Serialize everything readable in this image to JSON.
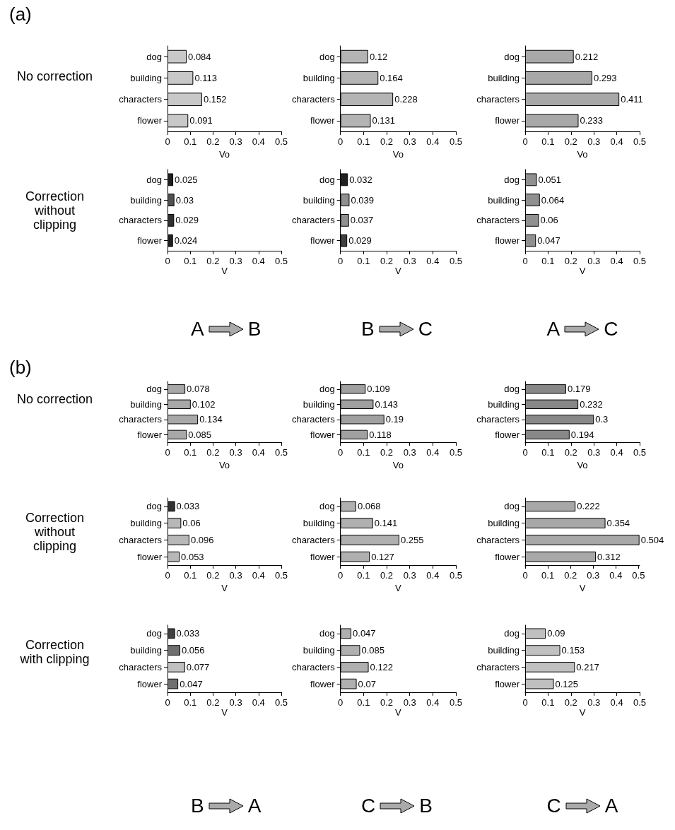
{
  "chart_data": [
    {
      "type": "bar",
      "orientation": "horizontal",
      "title": "(a)",
      "ylabel": "No correction",
      "xlabel": "Vo",
      "categories": [
        "dog",
        "building",
        "characters",
        "flower"
      ],
      "values": [
        0.084,
        0.113,
        0.152,
        0.091
      ],
      "colors": [
        "#c8c8c8",
        "#c8c8c8",
        "#c8c8c8",
        "#c8c8c8"
      ],
      "xlim": [
        0,
        0.5
      ],
      "xticks": [
        0,
        0.1,
        0.2,
        0.3,
        0.4,
        0.5
      ],
      "data_labels": true
    },
    {
      "type": "bar",
      "orientation": "horizontal",
      "xlabel": "Vo",
      "categories": [
        "dog",
        "building",
        "characters",
        "flower"
      ],
      "values": [
        0.12,
        0.164,
        0.228,
        0.131
      ],
      "colors": [
        "#b4b4b4",
        "#b4b4b4",
        "#b4b4b4",
        "#b4b4b4"
      ],
      "xlim": [
        0,
        0.5
      ],
      "xticks": [
        0,
        0.1,
        0.2,
        0.3,
        0.4,
        0.5
      ],
      "data_labels": true
    },
    {
      "type": "bar",
      "orientation": "horizontal",
      "xlabel": "Vo",
      "categories": [
        "dog",
        "building",
        "characters",
        "flower"
      ],
      "values": [
        0.212,
        0.293,
        0.411,
        0.233
      ],
      "colors": [
        "#a8a8a8",
        "#a8a8a8",
        "#a8a8a8",
        "#a8a8a8"
      ],
      "xlim": [
        0,
        0.5
      ],
      "xticks": [
        0,
        0.1,
        0.2,
        0.3,
        0.4,
        0.5
      ],
      "data_labels": true
    },
    {
      "type": "bar",
      "orientation": "horizontal",
      "ylabel": "Correction without clipping",
      "xlabel": "V",
      "categories": [
        "dog",
        "building",
        "characters",
        "flower"
      ],
      "values": [
        0.025,
        0.03,
        0.029,
        0.024
      ],
      "colors": [
        "#202020",
        "#505050",
        "#303030",
        "#202020"
      ],
      "xlim": [
        0,
        0.5
      ],
      "xticks": [
        0,
        0.1,
        0.2,
        0.3,
        0.4,
        0.5
      ],
      "data_labels": true,
      "annotations": [
        "A",
        "B"
      ]
    },
    {
      "type": "bar",
      "orientation": "horizontal",
      "xlabel": "V",
      "categories": [
        "dog",
        "building",
        "characters",
        "flower"
      ],
      "values": [
        0.032,
        0.039,
        0.037,
        0.029
      ],
      "colors": [
        "#202020",
        "#909090",
        "#909090",
        "#404040"
      ],
      "xlim": [
        0,
        0.5
      ],
      "xticks": [
        0,
        0.1,
        0.2,
        0.3,
        0.4,
        0.5
      ],
      "data_labels": true,
      "annotations": [
        "B",
        "C"
      ]
    },
    {
      "type": "bar",
      "orientation": "horizontal",
      "xlabel": "V",
      "categories": [
        "dog",
        "building",
        "characters",
        "flower"
      ],
      "values": [
        0.051,
        0.064,
        0.06,
        0.047
      ],
      "colors": [
        "#909090",
        "#909090",
        "#909090",
        "#909090"
      ],
      "xlim": [
        0,
        0.5
      ],
      "xticks": [
        0,
        0.1,
        0.2,
        0.3,
        0.4,
        0.5
      ],
      "data_labels": true,
      "annotations": [
        "A",
        "C"
      ]
    },
    {
      "type": "bar",
      "orientation": "horizontal",
      "title": "(b)",
      "ylabel": "No correction",
      "xlabel": "Vo",
      "categories": [
        "dog",
        "building",
        "characters",
        "flower"
      ],
      "values": [
        0.078,
        0.102,
        0.134,
        0.085
      ],
      "colors": [
        "#a8a8a8",
        "#a8a8a8",
        "#a8a8a8",
        "#a8a8a8"
      ],
      "xlim": [
        0,
        0.5
      ],
      "xticks": [
        0,
        0.1,
        0.2,
        0.3,
        0.4,
        0.5
      ],
      "data_labels": true
    },
    {
      "type": "bar",
      "orientation": "horizontal",
      "xlabel": "Vo",
      "categories": [
        "dog",
        "building",
        "characters",
        "flower"
      ],
      "values": [
        0.109,
        0.143,
        0.19,
        0.118
      ],
      "colors": [
        "#a0a0a0",
        "#a0a0a0",
        "#a0a0a0",
        "#a0a0a0"
      ],
      "xlim": [
        0,
        0.5
      ],
      "xticks": [
        0,
        0.1,
        0.2,
        0.3,
        0.4,
        0.5
      ],
      "data_labels": true
    },
    {
      "type": "bar",
      "orientation": "horizontal",
      "xlabel": "Vo",
      "categories": [
        "dog",
        "building",
        "characters",
        "flower"
      ],
      "values": [
        0.179,
        0.232,
        0.3,
        0.194
      ],
      "colors": [
        "#888888",
        "#888888",
        "#888888",
        "#888888"
      ],
      "xlim": [
        0,
        0.5
      ],
      "xticks": [
        0,
        0.1,
        0.2,
        0.3,
        0.4,
        0.5
      ],
      "data_labels": true
    },
    {
      "type": "bar",
      "orientation": "horizontal",
      "ylabel": "Correction without clipping",
      "xlabel": "V",
      "categories": [
        "dog",
        "building",
        "characters",
        "flower"
      ],
      "values": [
        0.033,
        0.06,
        0.096,
        0.053
      ],
      "colors": [
        "#303030",
        "#b8b8b8",
        "#b8b8b8",
        "#b8b8b8"
      ],
      "xlim": [
        0,
        0.5
      ],
      "xticks": [
        0,
        0.1,
        0.2,
        0.3,
        0.4,
        0.5
      ],
      "data_labels": true
    },
    {
      "type": "bar",
      "orientation": "horizontal",
      "xlabel": "V",
      "categories": [
        "dog",
        "building",
        "characters",
        "flower"
      ],
      "values": [
        0.068,
        0.141,
        0.255,
        0.127
      ],
      "colors": [
        "#b0b0b0",
        "#b0b0b0",
        "#b0b0b0",
        "#b0b0b0"
      ],
      "xlim": [
        0,
        0.5
      ],
      "xticks": [
        0,
        0.1,
        0.2,
        0.3,
        0.4,
        0.5
      ],
      "data_labels": true
    },
    {
      "type": "bar",
      "orientation": "horizontal",
      "xlabel": "V",
      "categories": [
        "dog",
        "building",
        "characters",
        "flower"
      ],
      "values": [
        0.222,
        0.354,
        0.504,
        0.312
      ],
      "colors": [
        "#a8a8a8",
        "#a8a8a8",
        "#a8a8a8",
        "#a8a8a8"
      ],
      "xlim": [
        0,
        0.505
      ],
      "xticks": [
        0,
        0.1,
        0.2,
        0.3,
        0.4,
        0.5
      ],
      "data_labels": true
    },
    {
      "type": "bar",
      "orientation": "horizontal",
      "ylabel": "Correction with clipping",
      "xlabel": "V",
      "categories": [
        "dog",
        "building",
        "characters",
        "flower"
      ],
      "values": [
        0.033,
        0.056,
        0.077,
        0.047
      ],
      "colors": [
        "#404040",
        "#707070",
        "#c0c0c0",
        "#707070"
      ],
      "xlim": [
        0,
        0.5
      ],
      "xticks": [
        0,
        0.1,
        0.2,
        0.3,
        0.4,
        0.5
      ],
      "data_labels": true,
      "annotations": [
        "B",
        "A"
      ]
    },
    {
      "type": "bar",
      "orientation": "horizontal",
      "xlabel": "V",
      "categories": [
        "dog",
        "building",
        "characters",
        "flower"
      ],
      "values": [
        0.047,
        0.085,
        0.122,
        0.07
      ],
      "colors": [
        "#b0b0b0",
        "#b0b0b0",
        "#b0b0b0",
        "#b0b0b0"
      ],
      "xlim": [
        0,
        0.5
      ],
      "xticks": [
        0,
        0.1,
        0.2,
        0.3,
        0.4,
        0.5
      ],
      "data_labels": true,
      "annotations": [
        "C",
        "B"
      ]
    },
    {
      "type": "bar",
      "orientation": "horizontal",
      "xlabel": "V",
      "categories": [
        "dog",
        "building",
        "characters",
        "flower"
      ],
      "values": [
        0.09,
        0.153,
        0.217,
        0.125
      ],
      "colors": [
        "#c0c0c0",
        "#c0c0c0",
        "#c0c0c0",
        "#c0c0c0"
      ],
      "xlim": [
        0,
        0.5
      ],
      "xticks": [
        0,
        0.1,
        0.2,
        0.3,
        0.4,
        0.5
      ],
      "data_labels": true,
      "annotations": [
        "C",
        "A"
      ]
    }
  ]
}
